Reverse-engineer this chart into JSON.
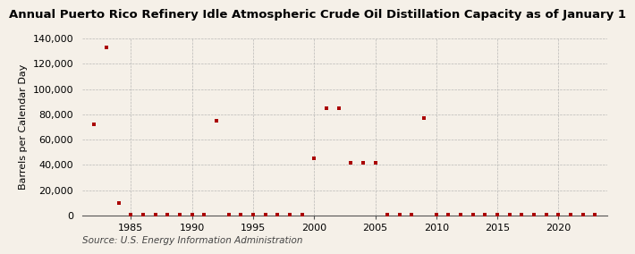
{
  "title": "Annual Puerto Rico Refinery Idle Atmospheric Crude Oil Distillation Capacity as of January 1",
  "ylabel": "Barrels per Calendar Day",
  "source": "Source: U.S. Energy Information Administration",
  "background_color": "#f5f0e8",
  "marker_color": "#aa0000",
  "data": [
    {
      "year": 1982,
      "value": 72000
    },
    {
      "year": 1983,
      "value": 133000
    },
    {
      "year": 1984,
      "value": 10000
    },
    {
      "year": 1985,
      "value": 500
    },
    {
      "year": 1986,
      "value": 500
    },
    {
      "year": 1987,
      "value": 500
    },
    {
      "year": 1988,
      "value": 500
    },
    {
      "year": 1989,
      "value": 500
    },
    {
      "year": 1990,
      "value": 500
    },
    {
      "year": 1991,
      "value": 500
    },
    {
      "year": 1992,
      "value": 75000
    },
    {
      "year": 1993,
      "value": 500
    },
    {
      "year": 1994,
      "value": 500
    },
    {
      "year": 1995,
      "value": 500
    },
    {
      "year": 1996,
      "value": 500
    },
    {
      "year": 1997,
      "value": 500
    },
    {
      "year": 1998,
      "value": 500
    },
    {
      "year": 1999,
      "value": 500
    },
    {
      "year": 2000,
      "value": 45000
    },
    {
      "year": 2001,
      "value": 85000
    },
    {
      "year": 2002,
      "value": 85000
    },
    {
      "year": 2003,
      "value": 42000
    },
    {
      "year": 2004,
      "value": 42000
    },
    {
      "year": 2005,
      "value": 42000
    },
    {
      "year": 2006,
      "value": 500
    },
    {
      "year": 2007,
      "value": 500
    },
    {
      "year": 2008,
      "value": 500
    },
    {
      "year": 2009,
      "value": 77000
    },
    {
      "year": 2010,
      "value": 500
    },
    {
      "year": 2011,
      "value": 500
    },
    {
      "year": 2012,
      "value": 500
    },
    {
      "year": 2013,
      "value": 500
    },
    {
      "year": 2014,
      "value": 500
    },
    {
      "year": 2015,
      "value": 500
    },
    {
      "year": 2016,
      "value": 500
    },
    {
      "year": 2017,
      "value": 500
    },
    {
      "year": 2018,
      "value": 500
    },
    {
      "year": 2019,
      "value": 500
    },
    {
      "year": 2020,
      "value": 500
    },
    {
      "year": 2021,
      "value": 500
    },
    {
      "year": 2022,
      "value": 500
    },
    {
      "year": 2023,
      "value": 500
    }
  ],
  "xlim": [
    1981,
    2024
  ],
  "ylim": [
    0,
    140000
  ],
  "yticks": [
    0,
    20000,
    40000,
    60000,
    80000,
    100000,
    120000,
    140000
  ],
  "xticks": [
    1985,
    1990,
    1995,
    2000,
    2005,
    2010,
    2015,
    2020
  ],
  "title_fontsize": 9.5,
  "label_fontsize": 8,
  "tick_fontsize": 8,
  "source_fontsize": 7.5
}
